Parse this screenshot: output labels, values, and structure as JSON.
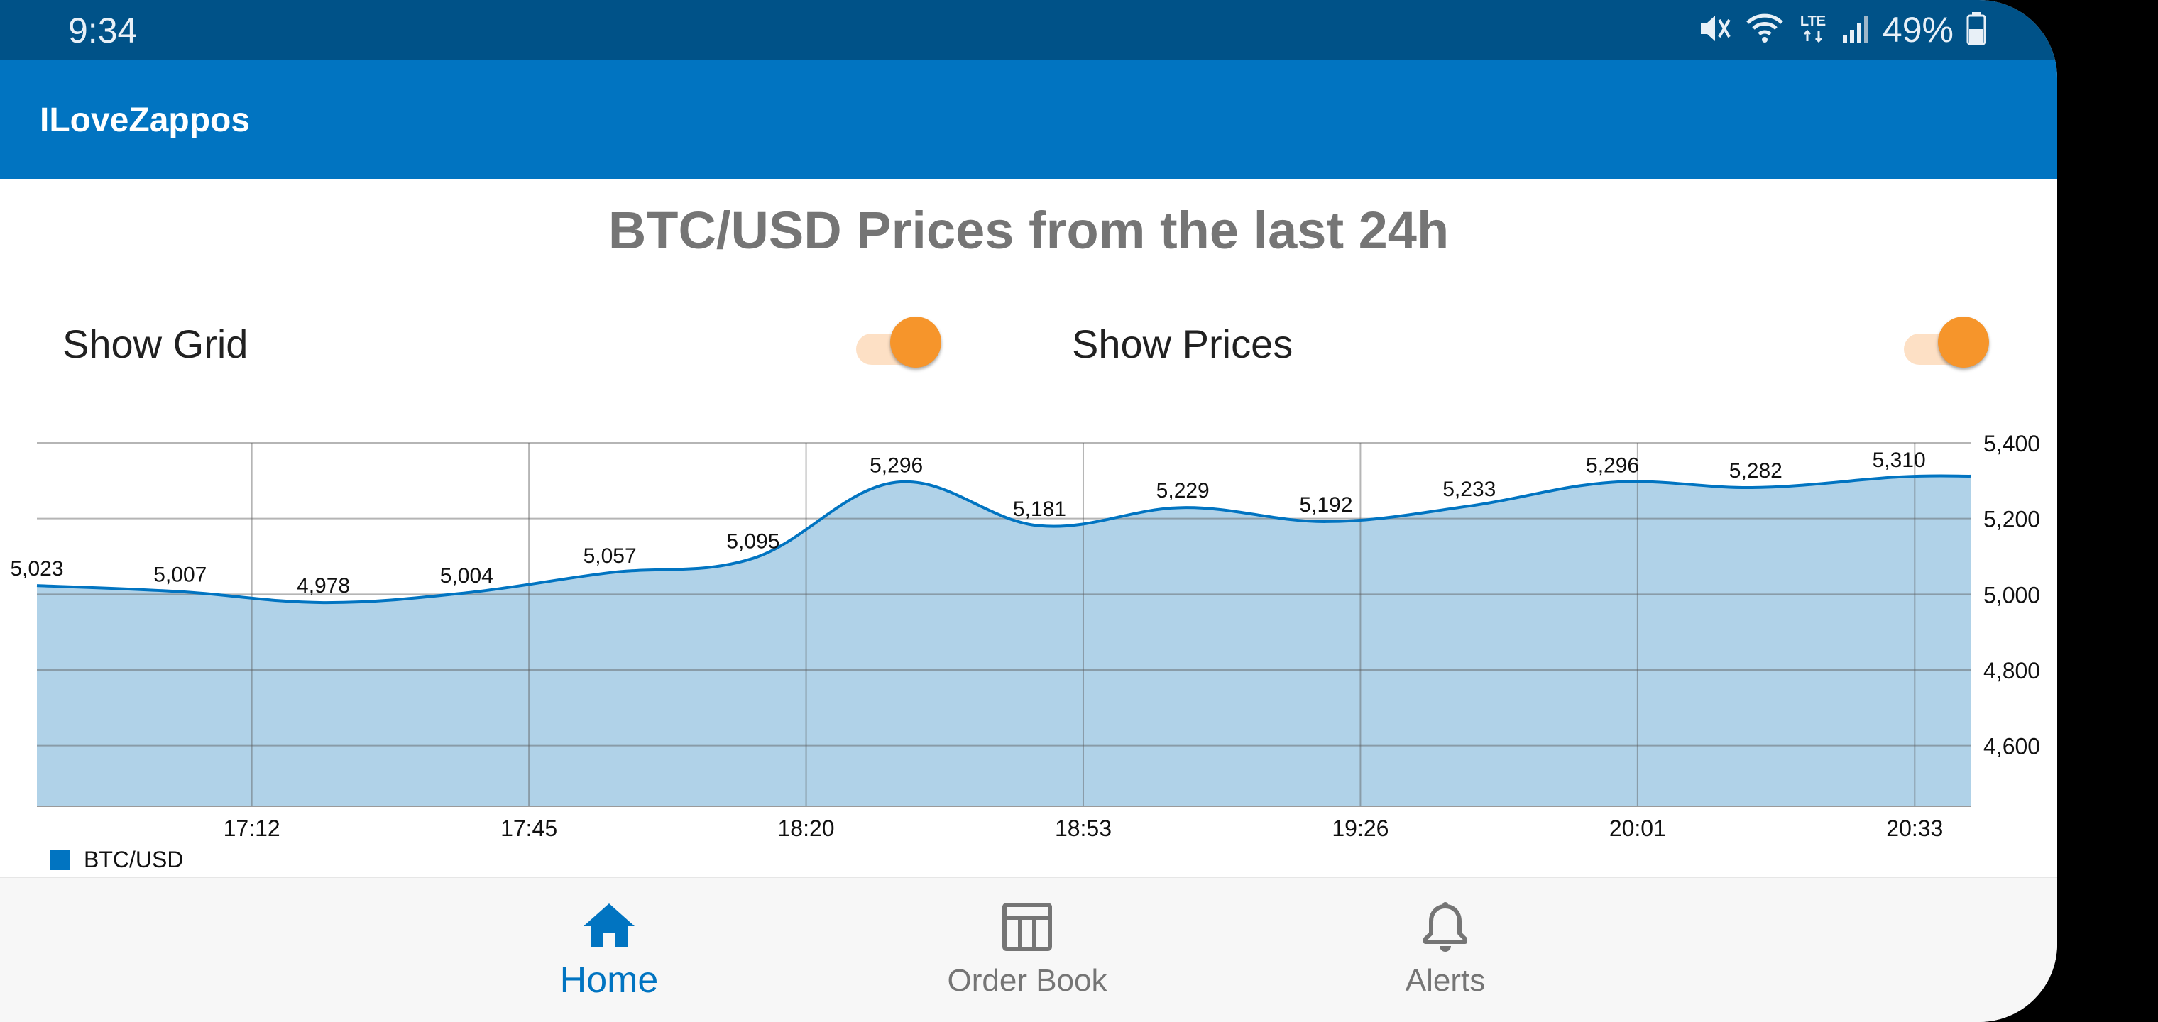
{
  "status_bar": {
    "time": "9:34",
    "network": "LTE",
    "battery": "49%"
  },
  "app_bar": {
    "title": "ILoveZappos"
  },
  "page": {
    "title": "BTC/USD Prices from the last 24h"
  },
  "toggles": {
    "grid": {
      "label": "Show Grid",
      "on": true
    },
    "prices": {
      "label": "Show Prices",
      "on": true
    }
  },
  "colors": {
    "status_bar": "#005288",
    "app_bar": "#0174c1",
    "accent": "#f6952b",
    "series_line": "#0174c1",
    "series_fill": "#b0d2e8"
  },
  "chart_data": {
    "type": "area",
    "title": "",
    "xlabel": "",
    "ylabel": "",
    "x_tick_labels": [
      "17:12",
      "17:45",
      "18:20",
      "18:53",
      "19:26",
      "20:01",
      "20:33"
    ],
    "y_ticks": [
      4600,
      4800,
      5000,
      5200,
      5400
    ],
    "y_tick_labels": [
      "4,600",
      "4,800",
      "5,000",
      "5,200",
      "5,400"
    ],
    "ylim": [
      4440,
      5400
    ],
    "grid": true,
    "legend": "bottom-left",
    "series": [
      {
        "name": "BTC/USD",
        "values": [
          5023,
          5007,
          4978,
          5004,
          5057,
          5095,
          5296,
          5181,
          5229,
          5192,
          5233,
          5296,
          5282,
          5310
        ],
        "labels": [
          "5,023",
          "5,007",
          "4,978",
          "5,004",
          "5,057",
          "5,095",
          "5,296",
          "5,181",
          "5,229",
          "5,192",
          "5,233",
          "5,296",
          "5,282",
          "5,310"
        ]
      }
    ]
  },
  "bottom_nav": {
    "items": [
      {
        "label": "Home",
        "icon": "home-icon",
        "active": true
      },
      {
        "label": "Order Book",
        "icon": "order-book-icon",
        "active": false
      },
      {
        "label": "Alerts",
        "icon": "bell-icon",
        "active": false
      }
    ]
  }
}
